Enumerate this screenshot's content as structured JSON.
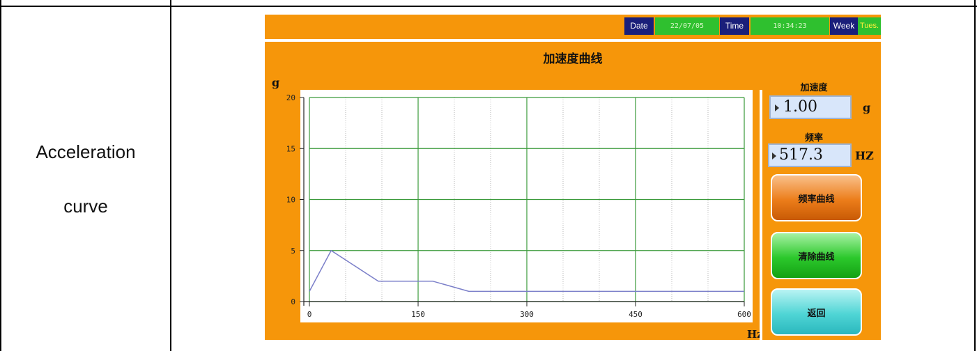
{
  "table": {
    "row_label_line1": "Acceleration",
    "row_label_line2": "curve"
  },
  "header": {
    "date_label": "Date",
    "date_value": "22/07/05",
    "time_label": "Time",
    "time_value": "10:34:23",
    "week_label": "Week",
    "week_value": "Tues."
  },
  "screen_title": "加速度曲线",
  "side_panel": {
    "accel_label": "加速度",
    "accel_value": "1.00",
    "accel_unit": "g",
    "freq_label": "频率",
    "freq_value": "517.3",
    "freq_unit": "HZ"
  },
  "buttons": {
    "freq_curve": "频率曲线",
    "clear_curve": "清除曲线",
    "back": "返回"
  },
  "colors": {
    "panel_bg": "#f6960a",
    "curve": "#7b7fc9",
    "major_grid": "#3a9a3a",
    "minor_grid": "#b8b8b8"
  },
  "chart_data": {
    "type": "line",
    "xlabel": "Hz",
    "ylabel": "g",
    "xlim": [
      0,
      600
    ],
    "ylim": [
      0,
      20
    ],
    "x_ticks": [
      0,
      150,
      300,
      450,
      600
    ],
    "y_ticks": [
      0,
      5,
      10,
      15,
      20
    ],
    "grid": true,
    "series": [
      {
        "x": [
          0,
          30,
          95,
          170,
          220,
          600
        ],
        "y": [
          1,
          5,
          2,
          2,
          1,
          1
        ]
      }
    ]
  }
}
